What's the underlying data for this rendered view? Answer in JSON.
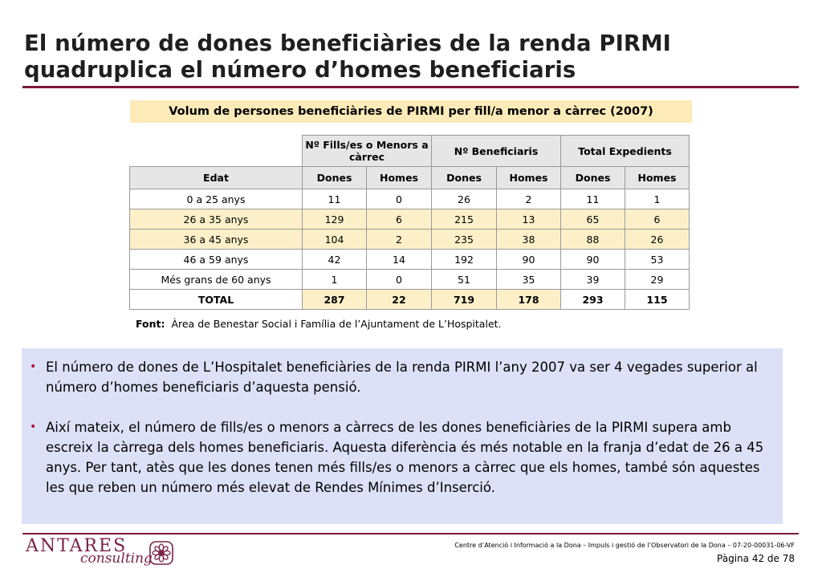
{
  "title": "El número de dones beneficiàries de la renda PIRMI quadruplica el número d’homes beneficiaris",
  "table": {
    "caption": "Volum de persones beneficiàries de PIRMI per fill/a menor a càrrec (2007)",
    "group_headers": [
      "Nº Fills/es o Menors a càrrec",
      "Nº Beneficiaris",
      "Total Expedients"
    ],
    "sub_headers": [
      "Edat",
      "Dones",
      "Homes",
      "Dones",
      "Homes",
      "Dones",
      "Homes"
    ],
    "rows": [
      [
        "0 a 25 anys",
        "11",
        "0",
        "26",
        "2",
        "11",
        "1"
      ],
      [
        "26 a 35 anys",
        "129",
        "6",
        "215",
        "13",
        "65",
        "6"
      ],
      [
        "36 a 45 anys",
        "104",
        "2",
        "235",
        "38",
        "88",
        "26"
      ],
      [
        "46 a 59 anys",
        "42",
        "14",
        "192",
        "90",
        "90",
        "53"
      ],
      [
        "Més grans de 60 anys",
        "1",
        "0",
        "51",
        "35",
        "39",
        "29"
      ],
      [
        "TOTAL",
        "287",
        "22",
        "719",
        "178",
        "293",
        "115"
      ]
    ],
    "source_label": "Font:",
    "source_text": "Àrea de Benestar Social i Família de l’Ajuntament de L’Hospitalet."
  },
  "bullets": [
    "El número de dones de L’Hospitalet beneficiàries de la renda PIRMI l’any 2007 va ser 4 vegades superior al número d’homes beneficiaris d’aquesta pensió.",
    "Així mateix, el número de fills/es o menors a càrrecs de les dones beneficiàries de la PIRMI supera amb escreix la càrrega dels homes beneficiaris. Aquesta diferència és més notable en la franja d’edat de 26 a 45 anys. Per tant, atès que les dones tenen més fills/es o menors a càrrec que els homes, també són aquestes les que reben un número més elevat de Rendes Mínimes d’Inserció."
  ],
  "footer": {
    "logo_word": "ANTARES",
    "logo_sub": "consulting",
    "doc_ref": "Centre d’Atenció i Informació a la Dona – Impuls i gestió de l’Observatori de la Dona – 07-20-00031-06-VF",
    "page": "Pàgina 42 de 78"
  },
  "colors": {
    "accent": "#7a1a3a",
    "highlight": "#fdf0c8",
    "header_gray": "#e6e6e6",
    "panel_blue": "#dde1f7"
  }
}
